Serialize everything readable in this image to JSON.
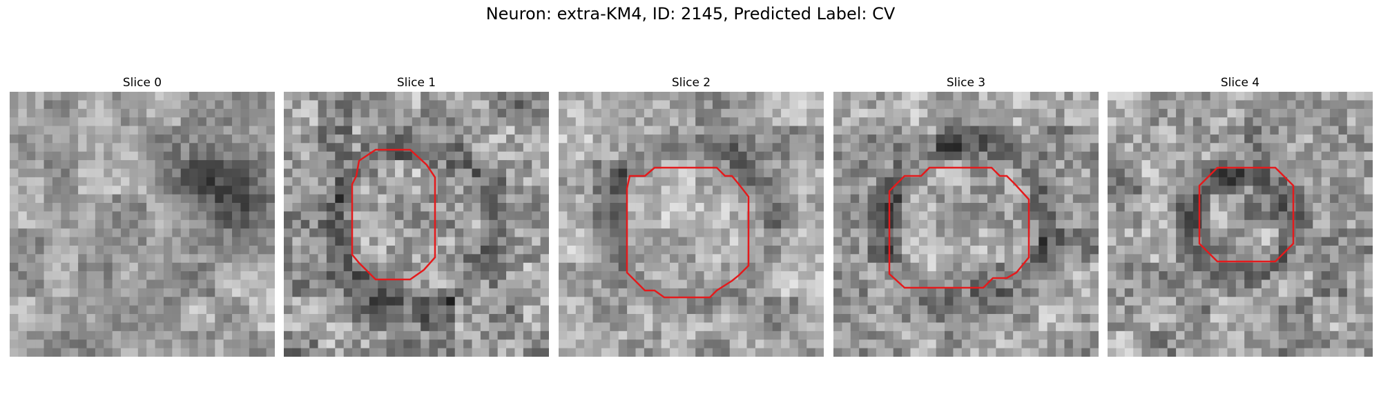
{
  "title": "Neuron: extra-KM4, ID: 2145, Predicted Label: CV",
  "contour_color": "#e41a1c",
  "panels": [
    {
      "label": "Slice 0",
      "has_contour": false,
      "dark_region": "right",
      "brightness": 160,
      "contrast": 55
    },
    {
      "label": "Slice 1",
      "has_contour": true,
      "contour_size": "large",
      "brightness": 150,
      "contrast": 95
    },
    {
      "label": "Slice 2",
      "has_contour": true,
      "contour_size": "large",
      "brightness": 165,
      "contrast": 70
    },
    {
      "label": "Slice 3",
      "has_contour": true,
      "contour_size": "large",
      "brightness": 155,
      "contrast": 85
    },
    {
      "label": "Slice 4",
      "has_contour": true,
      "contour_size": "small",
      "brightness": 155,
      "contrast": 85
    }
  ]
}
